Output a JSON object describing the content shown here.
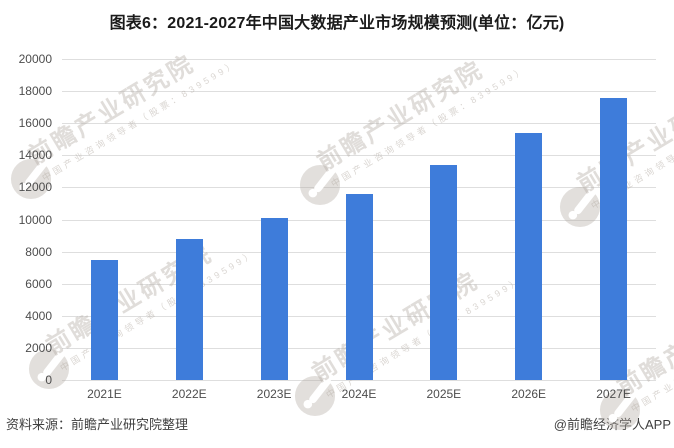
{
  "title": "图表6：2021-2027年中国大数据产业市场规模预测(单位：亿元)",
  "footer": {
    "source": "资料来源：前瞻产业研究院整理",
    "credit": "@前瞻经济学人APP"
  },
  "watermark": {
    "logo_icon": "qianzhan-logo",
    "brand_text": "前瞻产业研究院",
    "sub_text": "中国产业咨询领导者（股票：839599）"
  },
  "colors": {
    "bar": "#3e7cda",
    "gridline": "#dedede",
    "axis_text": "#4d4d4d",
    "title_text": "#1a1a1a",
    "footer_text": "#3f3f3f"
  },
  "chart_data": {
    "type": "bar",
    "title": "图表6：2021-2027年中国大数据产业市场规模预测(单位：亿元)",
    "categories": [
      "2021E",
      "2022E",
      "2023E",
      "2024E",
      "2025E",
      "2026E",
      "2027E"
    ],
    "values": [
      7500,
      8800,
      10100,
      11600,
      13400,
      15400,
      17600
    ],
    "xlabel": "",
    "ylabel": "",
    "unit": "亿元",
    "ylim": [
      0,
      20000
    ],
    "ytick_step": 2000,
    "yticks": [
      0,
      2000,
      4000,
      6000,
      8000,
      10000,
      12000,
      14000,
      16000,
      18000,
      20000
    ],
    "grid": true,
    "legend": null,
    "data_labels": false
  }
}
